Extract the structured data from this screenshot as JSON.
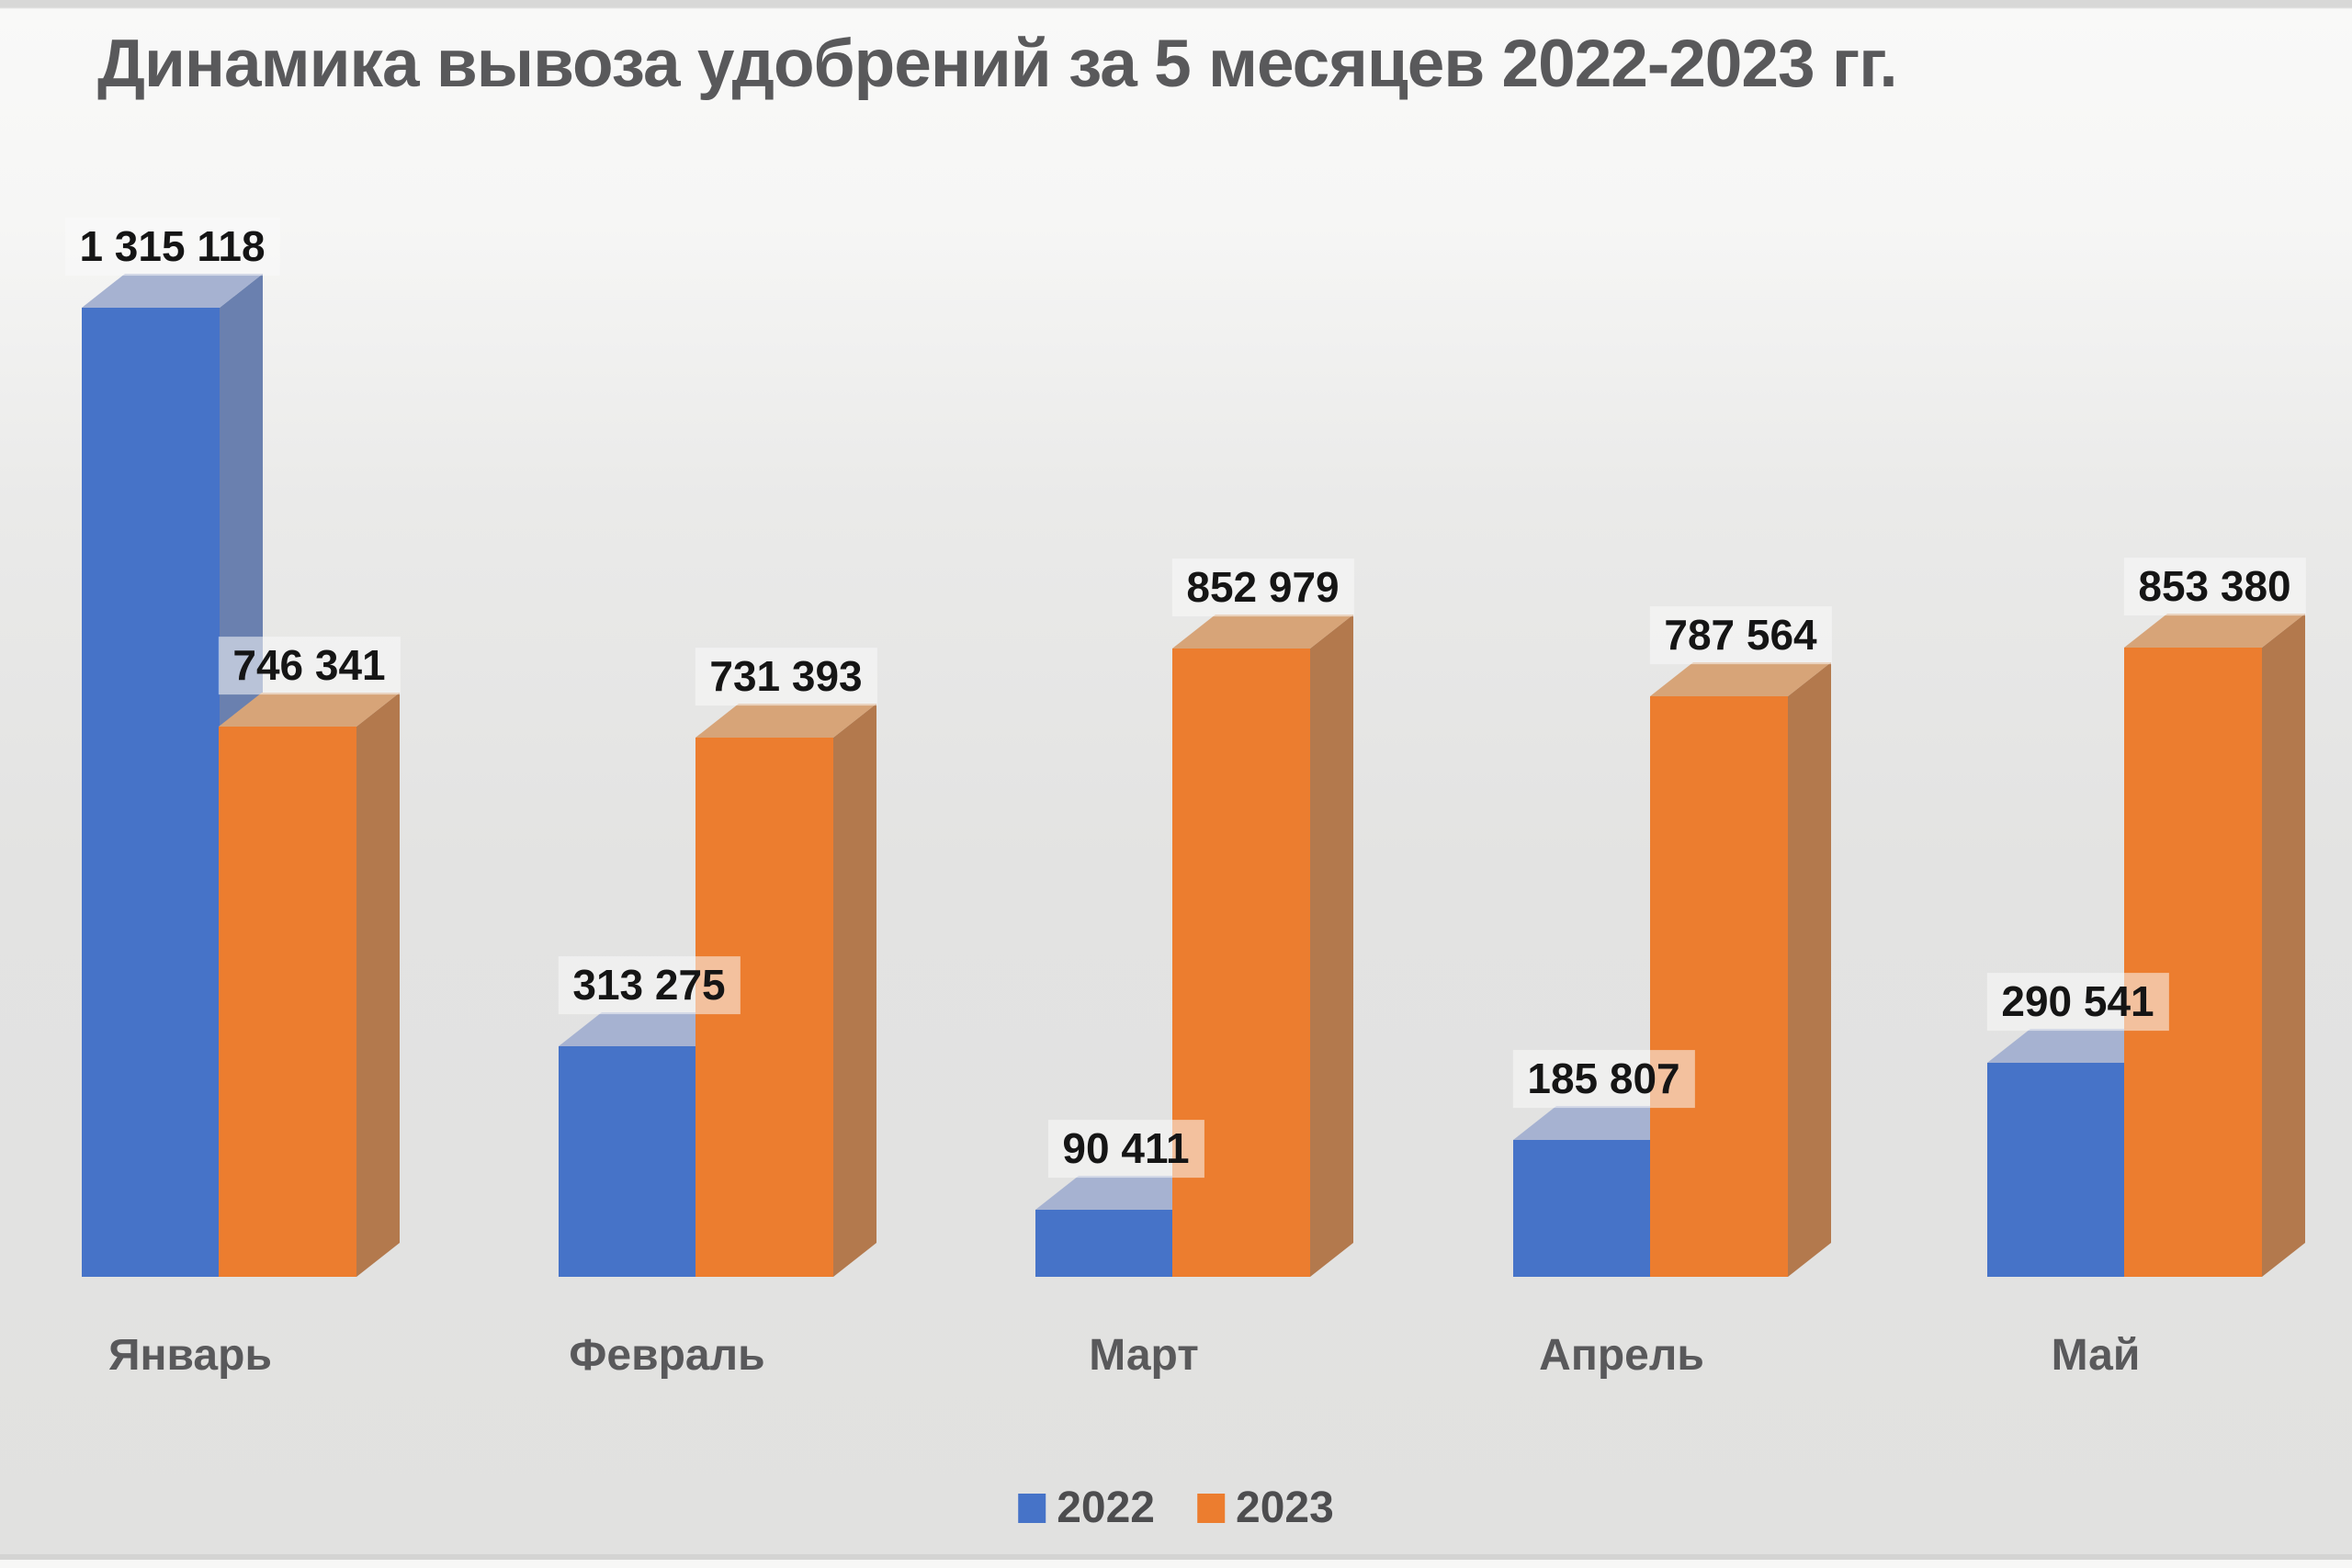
{
  "title": "Динамика вывоза удобрений за 5 месяцев 2022-2023 гг.",
  "chart_data": {
    "type": "bar",
    "effect": "3d-column",
    "title": "Динамика вывоза удобрений за 5 месяцев 2022-2023 гг.",
    "categories": [
      "Январь",
      "Февраль",
      "Март",
      "Апрель",
      "Май"
    ],
    "series": [
      {
        "name": "2022",
        "values": [
          1315118,
          313275,
          90411,
          185807,
          290541
        ],
        "value_labels": [
          "1 315 118",
          "313 275",
          "90 411",
          "185 807",
          "290 541"
        ],
        "colors": {
          "front": "#4673C8",
          "side": "#6A80AF",
          "top": "#A6B2D1"
        }
      },
      {
        "name": "2023",
        "values": [
          746341,
          731393,
          852979,
          787564,
          853380
        ],
        "value_labels": [
          "746 341",
          "731 393",
          "852 979",
          "787 564",
          "853 380"
        ],
        "colors": {
          "front": "#EC7D2F",
          "side": "#B3794D",
          "top": "#D7A478"
        }
      }
    ],
    "xlabel": "",
    "ylabel": "",
    "ylim": [
      0,
      1400000
    ],
    "grid": false,
    "axes_visible": false,
    "data_labels_visible": true,
    "legend_position": "bottom"
  },
  "legend": {
    "items": [
      {
        "label": "2022",
        "color": "#4673C8"
      },
      {
        "label": "2023",
        "color": "#EC7D2F"
      }
    ]
  },
  "text_colors": {
    "title": "#59595b",
    "category": "#59595b",
    "value_label": "#151515",
    "legend": "#4d4d4f"
  }
}
